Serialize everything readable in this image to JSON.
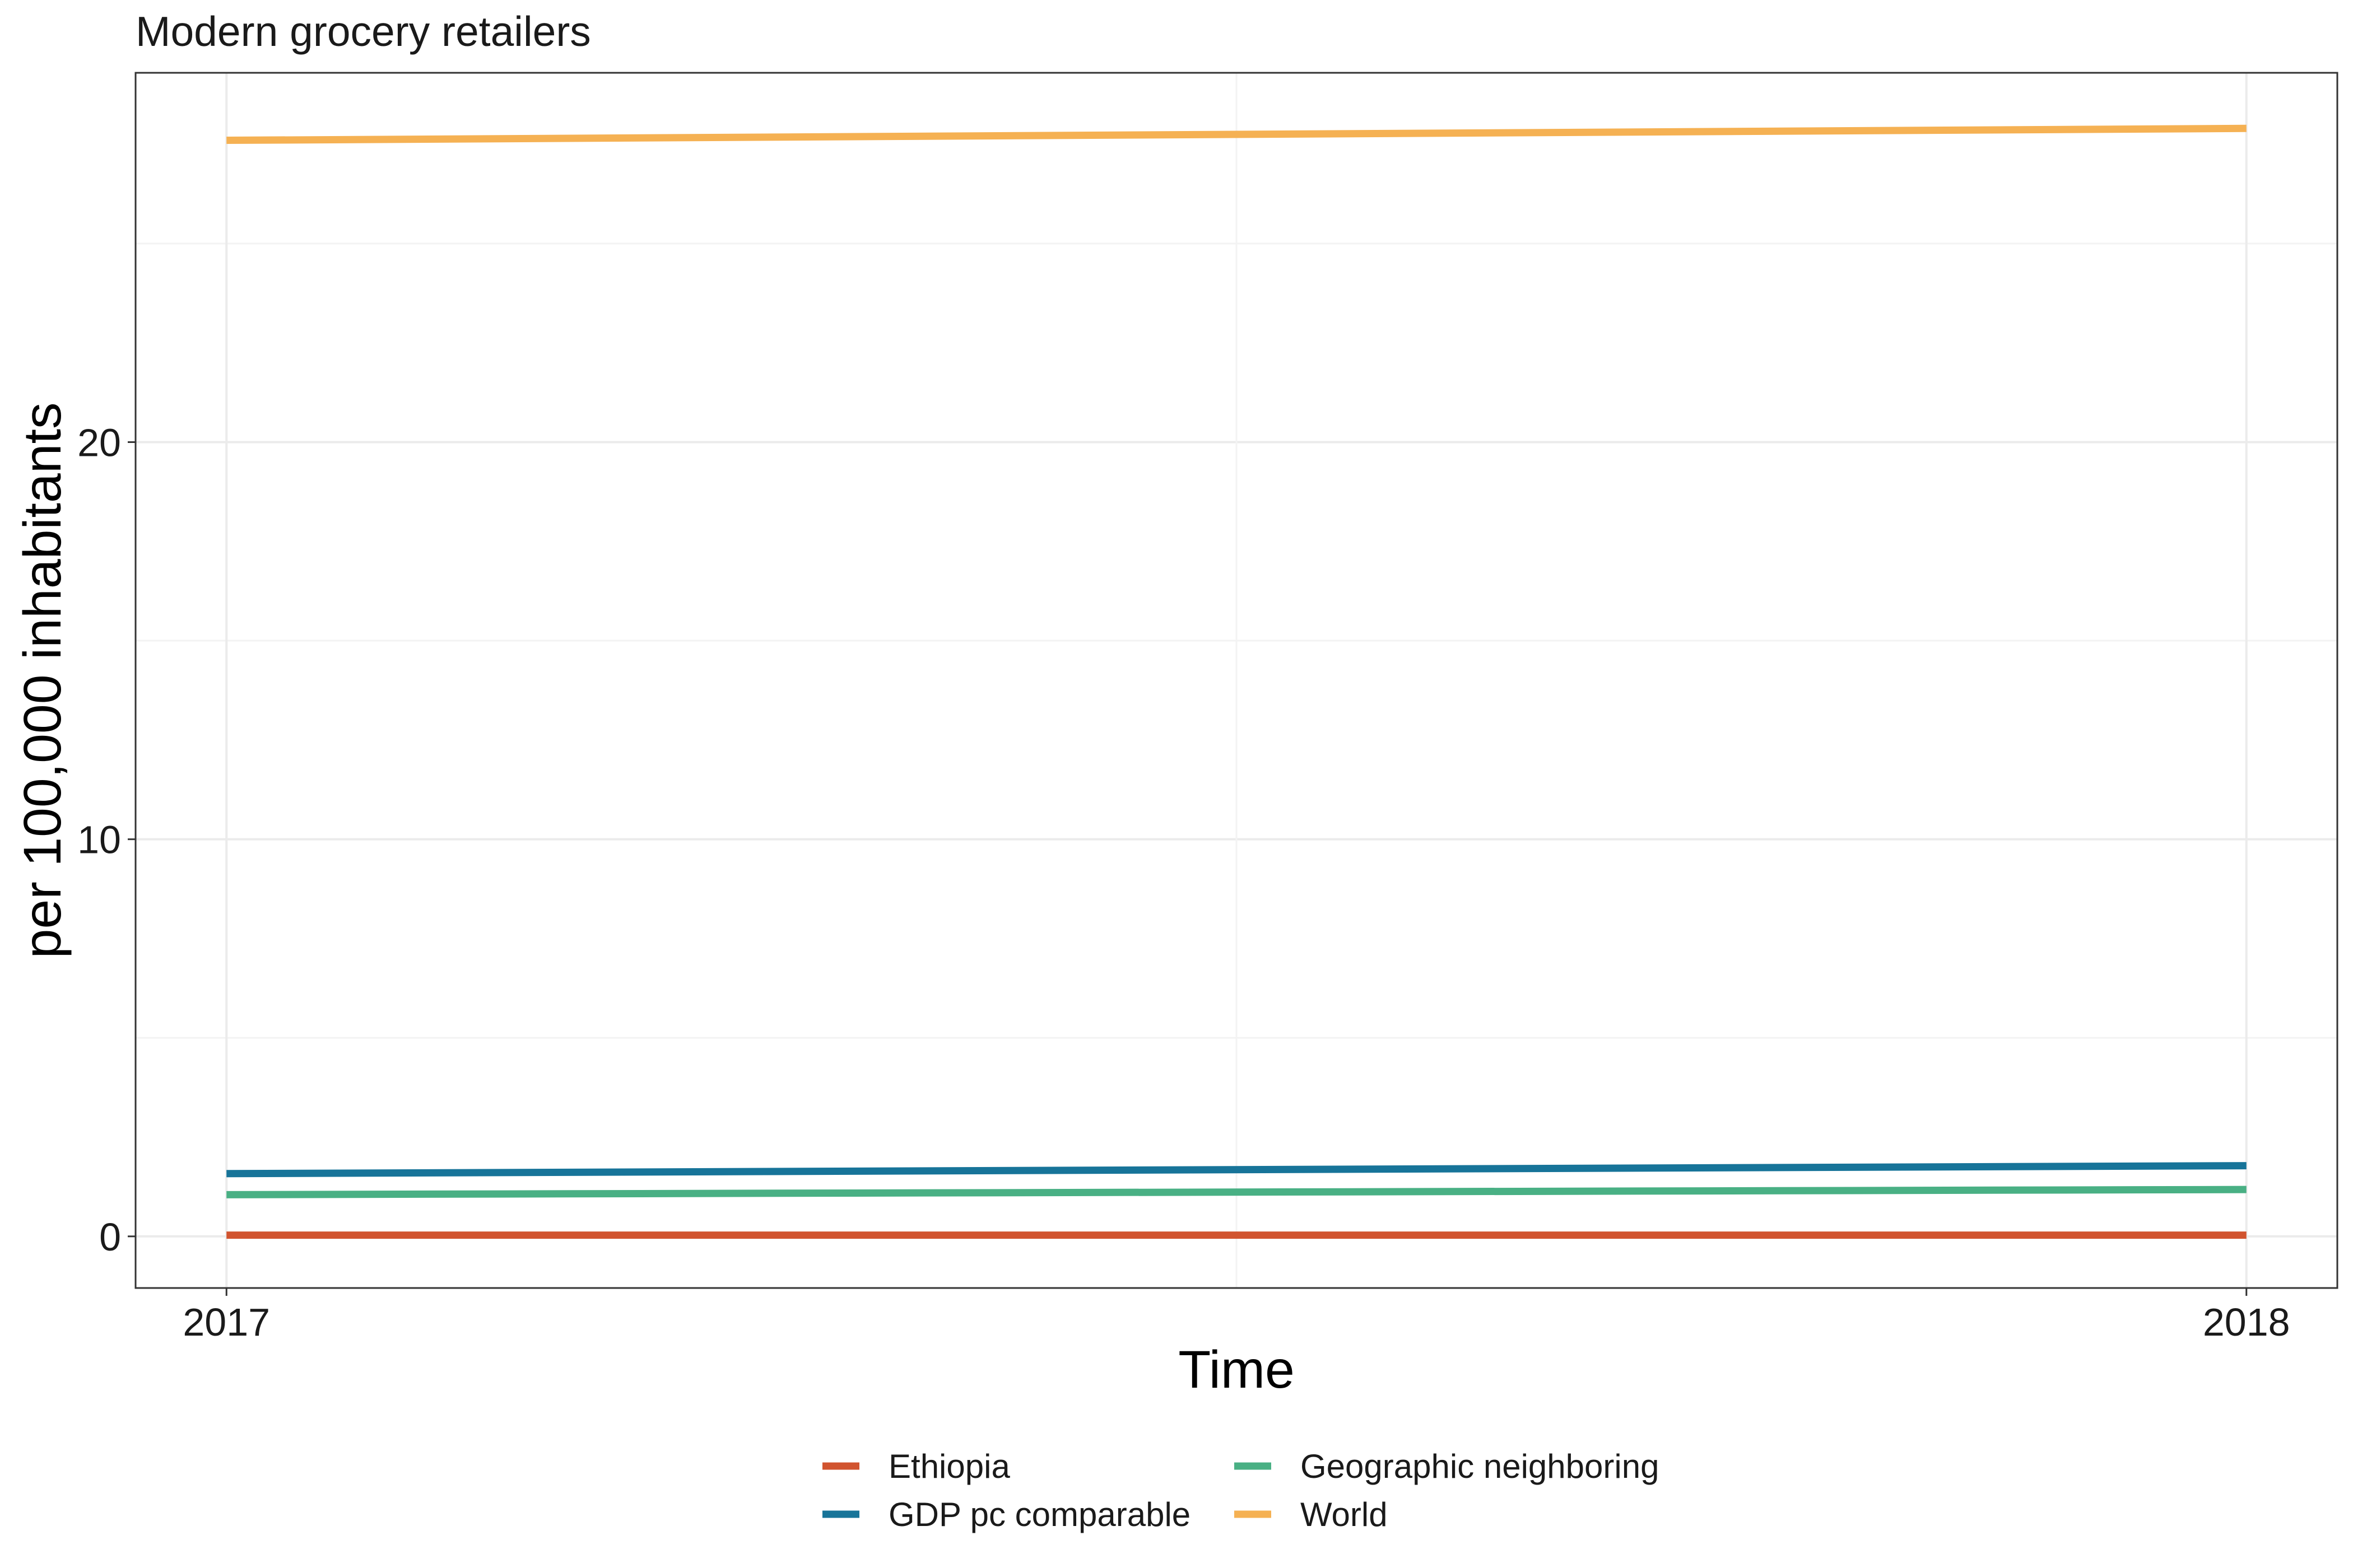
{
  "chart_data": {
    "type": "line",
    "title": "Modern grocery retailers",
    "xlabel": "Time",
    "ylabel": "per 100,000 inhabitants",
    "x": [
      2017,
      2018
    ],
    "x_ticks": [
      "2017",
      "2018"
    ],
    "y_ticks": [
      0,
      10,
      20
    ],
    "ylim": [
      -1.3,
      29.3
    ],
    "grid": true,
    "legend_position": "bottom",
    "series": [
      {
        "name": "Ethiopia",
        "color": "#d1542f",
        "values": [
          0.03,
          0.03
        ]
      },
      {
        "name": "GDP pc comparable",
        "color": "#177499",
        "values": [
          1.58,
          1.78
        ]
      },
      {
        "name": "Geographic neighboring",
        "color": "#49b084",
        "values": [
          1.05,
          1.18
        ]
      },
      {
        "name": "World",
        "color": "#f5b153",
        "values": [
          27.6,
          27.9
        ]
      }
    ]
  }
}
